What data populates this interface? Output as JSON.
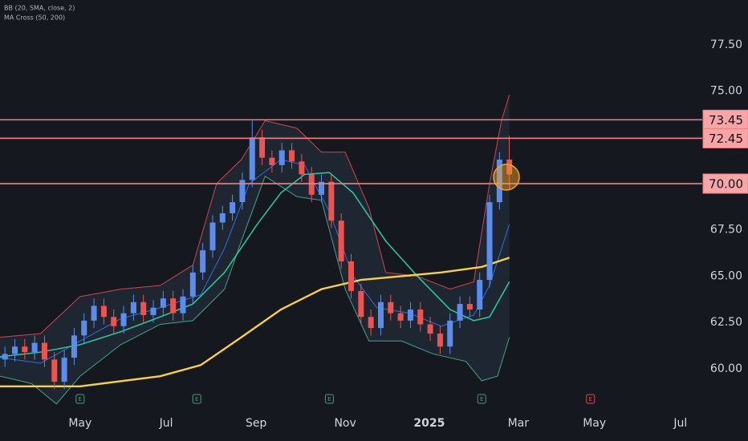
{
  "chart_data": {
    "type": "candlestick",
    "indicators": [
      "BB (20, SMA, close, 2)",
      "MA Cross (50, 200)"
    ],
    "up_color": "#5b8def",
    "down_color": "#ef5350",
    "x": [
      0.5,
      1.5,
      2.5,
      3.5,
      4.5,
      5.5,
      6.5,
      7.5,
      8.5,
      9.5,
      10.5,
      11.5,
      12.5,
      13.5,
      14.5,
      15.5,
      16.5,
      17.5,
      18.5,
      19.5,
      20.5,
      21.5,
      22.5,
      23.5,
      24.5,
      25.5,
      26.5,
      27.5,
      28.5,
      29.5,
      30.5,
      31.5,
      32.5,
      33.5,
      34.5,
      35.5,
      36.5,
      37.5,
      38.5,
      39.5,
      40.5,
      41.5,
      42.5,
      43.5,
      44.5,
      45.5,
      46.5,
      47.5,
      48.5,
      49.5,
      50.5,
      51.5
    ],
    "open": [
      60.5,
      60.8,
      61.2,
      60.9,
      61.4,
      60.5,
      59.3,
      60.6,
      61.8,
      62.6,
      63.4,
      62.8,
      62.3,
      63.0,
      63.6,
      62.9,
      63.3,
      63.8,
      63.0,
      63.9,
      65.2,
      66.4,
      67.9,
      68.4,
      69.0,
      70.2,
      72.5,
      71.4,
      71.0,
      71.8,
      71.2,
      70.5,
      69.4,
      70.1,
      68.0,
      65.8,
      64.2,
      62.8,
      62.2,
      63.6,
      63.0,
      62.6,
      63.2,
      62.4,
      61.9,
      61.2,
      62.6,
      63.5,
      63.2,
      64.8,
      69.0,
      71.3
    ],
    "high": [
      61.2,
      61.6,
      61.6,
      61.8,
      61.8,
      60.9,
      61.0,
      62.2,
      63.0,
      63.8,
      63.8,
      63.2,
      63.4,
      64.0,
      64.0,
      63.7,
      64.2,
      64.2,
      64.3,
      65.6,
      66.8,
      68.3,
      68.8,
      69.4,
      70.6,
      73.4,
      72.9,
      71.8,
      72.2,
      72.2,
      71.6,
      70.9,
      70.5,
      70.5,
      68.4,
      66.2,
      64.6,
      63.2,
      64.0,
      64.0,
      63.4,
      63.6,
      63.6,
      62.8,
      62.3,
      63.0,
      63.9,
      63.9,
      65.2,
      69.4,
      71.7,
      72.6
    ],
    "low": [
      60.1,
      60.4,
      60.5,
      60.5,
      60.1,
      58.9,
      58.9,
      60.2,
      61.4,
      62.2,
      62.4,
      61.9,
      61.9,
      62.6,
      62.5,
      62.5,
      62.9,
      62.6,
      62.6,
      63.5,
      64.8,
      66.0,
      67.5,
      68.0,
      68.6,
      69.8,
      71.0,
      70.6,
      70.6,
      70.8,
      70.1,
      69.0,
      69.0,
      67.6,
      65.4,
      63.8,
      62.4,
      61.8,
      61.8,
      62.6,
      62.2,
      62.2,
      62.0,
      61.5,
      60.8,
      60.8,
      62.2,
      62.8,
      62.8,
      64.4,
      68.6,
      69.7
    ],
    "close": [
      60.8,
      61.2,
      60.9,
      61.4,
      60.5,
      59.3,
      60.6,
      61.8,
      62.6,
      63.4,
      62.8,
      62.3,
      63.0,
      63.6,
      62.9,
      63.3,
      63.8,
      63.0,
      63.9,
      65.2,
      66.4,
      67.9,
      68.4,
      69.0,
      70.2,
      72.5,
      71.4,
      71.0,
      71.8,
      71.2,
      70.5,
      69.4,
      70.1,
      68.0,
      65.8,
      64.2,
      62.8,
      62.2,
      63.6,
      63.0,
      62.6,
      63.2,
      62.4,
      61.9,
      61.2,
      62.6,
      63.5,
      63.2,
      64.8,
      69.0,
      71.3,
      70.5
    ],
    "band_color": "rgba(80,110,140,0.16)",
    "series": [
      {
        "color": "#d2454d",
        "width": 1,
        "x": [
          0,
          4.1,
          8.1,
          12.2,
          16.2,
          19.5,
          21.9,
          24.4,
          26.8,
          30.0,
          32.5,
          34.9,
          37.3,
          39.0,
          42.2,
          45.5,
          47.9,
          49.5,
          50.7,
          51.5
        ],
        "values": [
          61.7,
          61.9,
          63.9,
          64.3,
          64.5,
          65.6,
          70.0,
          71.3,
          73.4,
          73.0,
          71.7,
          71.7,
          68.7,
          65.2,
          65.0,
          64.3,
          64.7,
          70.0,
          73.4,
          74.8
        ]
      },
      {
        "color": "#3ea58c",
        "width": 1,
        "x": [
          0,
          3.2,
          5.7,
          8.1,
          12.2,
          16.2,
          19.5,
          22.7,
          24.4,
          26.8,
          30.0,
          32.5,
          34.9,
          37.3,
          40.6,
          43.8,
          47.1,
          48.7,
          50.3,
          51.5
        ],
        "values": [
          59.6,
          59.2,
          58.1,
          59.6,
          61.3,
          62.4,
          62.6,
          64.3,
          66.9,
          70.4,
          69.3,
          69.1,
          64.3,
          61.5,
          61.5,
          60.8,
          60.4,
          59.35,
          59.6,
          61.7
        ]
      },
      {
        "color": "#2f6fe0",
        "width": 1,
        "x": [
          0,
          4.1,
          8.1,
          12.2,
          16.2,
          20.3,
          22.7,
          25.2,
          28.4,
          30.8,
          33.3,
          35.7,
          38.1,
          41.4,
          44.6,
          47.9,
          49.5,
          51.5
        ],
        "values": [
          60.6,
          60.3,
          61.5,
          62.7,
          63.3,
          64.0,
          66.5,
          70.0,
          71.3,
          71.0,
          68.5,
          65.0,
          63.3,
          63.0,
          62.3,
          62.9,
          64.5,
          67.8
        ]
      },
      {
        "color": "#2bc39a",
        "width": 1.6,
        "x": [
          0,
          4.1,
          8.1,
          12.2,
          16.2,
          19.5,
          22.7,
          26.0,
          28.4,
          30.8,
          33.3,
          35.7,
          39.0,
          42.2,
          45.5,
          47.9,
          49.5,
          51.5
        ],
        "values": [
          60.65,
          60.9,
          61.3,
          62.0,
          62.8,
          63.5,
          65.2,
          67.8,
          69.5,
          70.5,
          70.6,
          69.5,
          66.9,
          65.0,
          63.2,
          62.6,
          62.8,
          64.7
        ]
      },
      {
        "color": "#f7d13f",
        "width": 2.4,
        "x": [
          0,
          8.1,
          16.2,
          20.3,
          24.4,
          28.4,
          32.5,
          36.5,
          40.6,
          44.6,
          48.7,
          51.5
        ],
        "values": [
          59.05,
          59.05,
          59.6,
          60.2,
          61.7,
          63.2,
          64.3,
          64.8,
          65.0,
          65.2,
          65.5,
          66.0
        ]
      }
    ],
    "levels": [
      73.45,
      72.45,
      {
        "value": 70,
        "label": "70.00"
      }
    ],
    "level_color": "#f47f84",
    "marker": {
      "x": 51.2,
      "y": 70.35,
      "color": "#f5a623"
    },
    "events": {
      "label": "E",
      "x": [
        8.1,
        19.9,
        33.3,
        48.7,
        59.7
      ],
      "colors": [
        "#3aa17c",
        "#3aa17c",
        "#3aa17c",
        "#3aa17c",
        "#e0455a"
      ]
    },
    "xlim": [
      0,
      71
    ],
    "xticks": [
      {
        "value": 8.1,
        "label": "May"
      },
      {
        "value": 16.8,
        "label": "Jul"
      },
      {
        "value": 25.9,
        "label": "Sep"
      },
      {
        "value": 34.9,
        "label": "Nov"
      },
      {
        "value": 43.4,
        "label": "2025"
      },
      {
        "value": 52.4,
        "label": "Mar"
      },
      {
        "value": 60.1,
        "label": "May"
      },
      {
        "value": 68.8,
        "label": "Jul"
      }
    ],
    "ylim": [
      57.83,
      79.92
    ],
    "yticks": [
      {
        "value": 60,
        "label": "60.00"
      },
      {
        "value": 62.5,
        "label": "62.50"
      },
      {
        "value": 65,
        "label": "65.00"
      },
      {
        "value": 67.5,
        "label": "67.50"
      },
      {
        "value": 75,
        "label": "75.00"
      },
      {
        "value": 77.5,
        "label": "77.50"
      }
    ]
  }
}
